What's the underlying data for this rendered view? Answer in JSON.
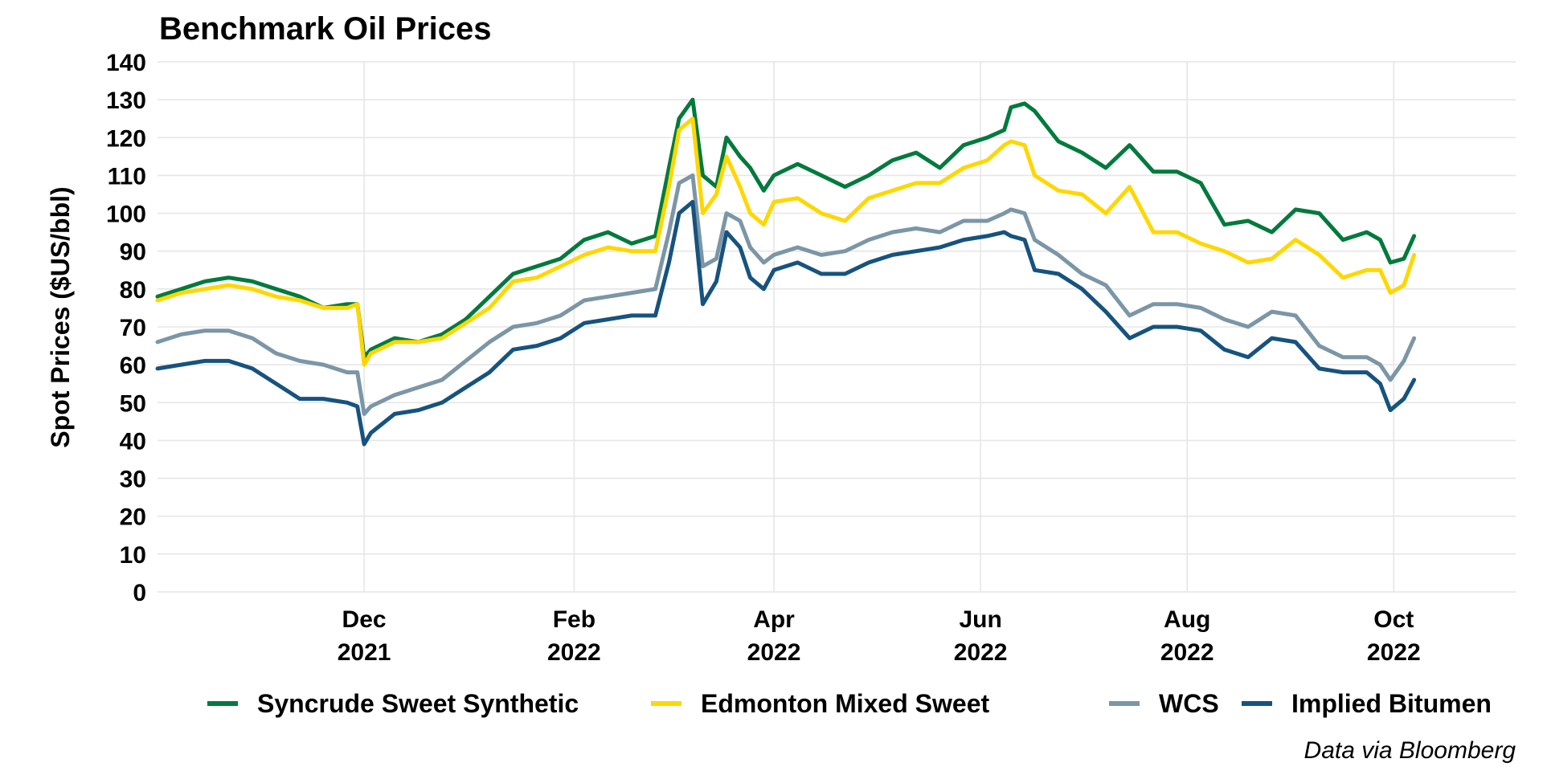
{
  "chart_data": {
    "type": "line",
    "title": "Benchmark Oil Prices",
    "xlabel": "",
    "ylabel": "Spot Prices ($US/bbl)",
    "caption": "Data via Bloomberg",
    "ylim": [
      0,
      140
    ],
    "yticks": [
      0,
      10,
      20,
      30,
      40,
      50,
      60,
      70,
      80,
      90,
      100,
      110,
      120,
      130,
      140
    ],
    "xlim": [
      "2021-10-01",
      "2022-11-06"
    ],
    "xticks": [
      {
        "date": "2021-12-01",
        "label_month": "Dec",
        "label_year": "2021"
      },
      {
        "date": "2022-02-01",
        "label_month": "Feb",
        "label_year": "2022"
      },
      {
        "date": "2022-04-01",
        "label_month": "Apr",
        "label_year": "2022"
      },
      {
        "date": "2022-06-01",
        "label_month": "Jun",
        "label_year": "2022"
      },
      {
        "date": "2022-08-01",
        "label_month": "Aug",
        "label_year": "2022"
      },
      {
        "date": "2022-10-01",
        "label_month": "Oct",
        "label_year": "2022"
      }
    ],
    "grid": true,
    "legend_position": "bottom",
    "x": [
      "2021-10-01",
      "2021-10-08",
      "2021-10-15",
      "2021-10-22",
      "2021-10-29",
      "2021-11-05",
      "2021-11-12",
      "2021-11-19",
      "2021-11-26",
      "2021-11-29",
      "2021-12-01",
      "2021-12-03",
      "2021-12-10",
      "2021-12-17",
      "2021-12-24",
      "2021-12-31",
      "2022-01-07",
      "2022-01-14",
      "2022-01-21",
      "2022-01-28",
      "2022-02-04",
      "2022-02-11",
      "2022-02-18",
      "2022-02-25",
      "2022-03-01",
      "2022-03-04",
      "2022-03-08",
      "2022-03-11",
      "2022-03-15",
      "2022-03-18",
      "2022-03-22",
      "2022-03-25",
      "2022-03-29",
      "2022-04-01",
      "2022-04-08",
      "2022-04-15",
      "2022-04-22",
      "2022-04-29",
      "2022-05-06",
      "2022-05-13",
      "2022-05-20",
      "2022-05-27",
      "2022-06-03",
      "2022-06-08",
      "2022-06-10",
      "2022-06-14",
      "2022-06-17",
      "2022-06-24",
      "2022-07-01",
      "2022-07-08",
      "2022-07-15",
      "2022-07-22",
      "2022-07-29",
      "2022-08-05",
      "2022-08-12",
      "2022-08-19",
      "2022-08-26",
      "2022-09-02",
      "2022-09-09",
      "2022-09-16",
      "2022-09-23",
      "2022-09-27",
      "2022-09-30",
      "2022-10-04",
      "2022-10-07"
    ],
    "series": [
      {
        "name": "Syncrude Sweet Synthetic",
        "color": "#007A3D",
        "values": [
          78,
          80,
          82,
          83,
          82,
          80,
          78,
          75,
          76,
          76,
          62,
          64,
          67,
          66,
          68,
          72,
          78,
          84,
          86,
          88,
          93,
          95,
          92,
          94,
          112,
          125,
          130,
          110,
          107,
          120,
          115,
          112,
          106,
          110,
          113,
          110,
          107,
          110,
          114,
          116,
          112,
          118,
          120,
          122,
          128,
          129,
          127,
          119,
          116,
          112,
          118,
          111,
          111,
          108,
          97,
          98,
          95,
          101,
          100,
          93,
          95,
          93,
          87,
          88,
          94
        ]
      },
      {
        "name": "Edmonton Mixed Sweet",
        "color": "#FFD700",
        "values": [
          77,
          79,
          80,
          81,
          80,
          78,
          77,
          75,
          75,
          76,
          60,
          63,
          66,
          66,
          67,
          71,
          75,
          82,
          83,
          86,
          89,
          91,
          90,
          90,
          107,
          122,
          125,
          100,
          105,
          115,
          107,
          100,
          97,
          103,
          104,
          100,
          98,
          104,
          106,
          108,
          108,
          112,
          114,
          118,
          119,
          118,
          110,
          106,
          105,
          100,
          107,
          95,
          95,
          92,
          90,
          87,
          88,
          93,
          89,
          83,
          85,
          85,
          79,
          81,
          89
        ]
      },
      {
        "name": "WCS",
        "color": "#7B96A6",
        "values": [
          66,
          68,
          69,
          69,
          67,
          63,
          61,
          60,
          58,
          58,
          47,
          49,
          52,
          54,
          56,
          61,
          66,
          70,
          71,
          73,
          77,
          78,
          79,
          80,
          95,
          108,
          110,
          86,
          88,
          100,
          98,
          91,
          87,
          89,
          91,
          89,
          90,
          93,
          95,
          96,
          95,
          98,
          98,
          100,
          101,
          100,
          93,
          89,
          84,
          81,
          73,
          76,
          76,
          75,
          72,
          70,
          74,
          73,
          65,
          62,
          62,
          60,
          56,
          61,
          67
        ]
      },
      {
        "name": "Implied Bitumen",
        "color": "#16537E",
        "values": [
          59,
          60,
          61,
          61,
          59,
          55,
          51,
          51,
          50,
          49,
          39,
          42,
          47,
          48,
          50,
          54,
          58,
          64,
          65,
          67,
          71,
          72,
          73,
          73,
          87,
          100,
          103,
          76,
          82,
          95,
          91,
          83,
          80,
          85,
          87,
          84,
          84,
          87,
          89,
          90,
          91,
          93,
          94,
          95,
          94,
          93,
          85,
          84,
          80,
          74,
          67,
          70,
          70,
          69,
          64,
          62,
          67,
          66,
          59,
          58,
          58,
          55,
          48,
          51,
          56
        ]
      }
    ]
  }
}
